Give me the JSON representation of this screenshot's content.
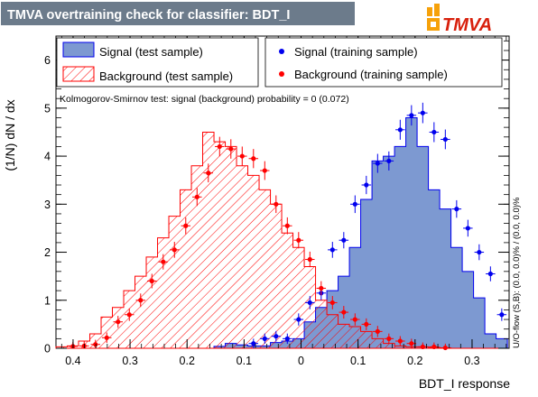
{
  "window": {
    "title": "TMVA overtraining check for classifier: BDT_I",
    "logo_text": "TMVA"
  },
  "chart_data": {
    "type": "histogram",
    "xlabel": "BDT_I response",
    "ylabel": "(1/N) dN / dx",
    "xlim": [
      -0.43,
      0.365
    ],
    "ylim": [
      0,
      6.5
    ],
    "x_ticks": [
      -0.4,
      -0.3,
      -0.2,
      -0.1,
      0,
      0.1,
      0.2,
      0.3
    ],
    "x_tick_labels": [
      "0.4",
      "0.3",
      "0.2",
      "0.1",
      "0",
      "0.1",
      "0.2",
      "0.3"
    ],
    "y_ticks": [
      0,
      1,
      2,
      3,
      4,
      5,
      6
    ],
    "y_tick_labels": [
      "0",
      "1",
      "2",
      "3",
      "4",
      "5",
      "6"
    ],
    "legend": {
      "left": [
        "Signal (test sample)",
        "Background (test sample)"
      ],
      "right": [
        "Signal (training sample)",
        "Background (training sample)"
      ]
    },
    "ks_text": "Kolmogorov-Smirnov test: signal (background) probability =    0 (0.072)",
    "overflow_text": "U/O-flow (S,B): (0.0, 0.0)% / (0.0, 0.0)%",
    "colors": {
      "signal_fill": "#7d99d1",
      "signal_line": "#0000ee",
      "background_line": "#ff0000",
      "training_signal": "#0000ee",
      "training_background": "#ff0000"
    },
    "bins": {
      "x_low": -0.43,
      "width": 0.0198,
      "count": 40
    },
    "series": [
      {
        "name": "Signal (test sample)",
        "style": "filled-histogram",
        "values": [
          0,
          0,
          0,
          0,
          0,
          0,
          0,
          0,
          0,
          0,
          0,
          0,
          0,
          0,
          0.04,
          0.1,
          0.07,
          0.05,
          0.05,
          0.12,
          0.15,
          0.2,
          0.55,
          0.85,
          1.2,
          1.5,
          2.1,
          3.1,
          3.9,
          4.0,
          4.2,
          4.8,
          4.2,
          3.3,
          2.9,
          2.1,
          1.6,
          1.05,
          0.3,
          0.2
        ]
      },
      {
        "name": "Background (test sample)",
        "style": "hatched-histogram",
        "values": [
          0.03,
          0.05,
          0.15,
          0.3,
          0.65,
          0.85,
          1.2,
          1.5,
          1.9,
          2.3,
          2.75,
          3.3,
          3.8,
          4.5,
          4.3,
          4.2,
          3.8,
          3.6,
          3.3,
          3.0,
          2.4,
          2.1,
          1.7,
          1.0,
          0.7,
          0.5,
          0.45,
          0.35,
          0.2,
          0.1,
          0.05,
          0.03,
          0.03,
          0.02,
          0.01,
          0,
          0,
          0,
          0,
          0
        ]
      },
      {
        "name": "Signal (training sample)",
        "style": "points",
        "values": [
          0,
          0,
          0,
          0,
          0,
          0,
          0,
          0,
          0,
          0,
          0,
          0,
          0,
          0,
          0,
          0,
          0,
          0.1,
          0.2,
          0.25,
          0.2,
          0.6,
          0.95,
          1.15,
          2.05,
          2.25,
          3.0,
          3.4,
          3.85,
          3.9,
          4.55,
          4.85,
          4.9,
          4.5,
          4.35,
          2.9,
          2.5,
          2.0,
          1.55,
          0.7
        ]
      },
      {
        "name": "Background (training sample)",
        "style": "points",
        "values": [
          0,
          0.04,
          0.05,
          0.08,
          0.22,
          0.55,
          0.7,
          1.0,
          1.4,
          1.8,
          2.05,
          2.55,
          3.15,
          3.65,
          4.2,
          4.15,
          4.0,
          3.95,
          3.7,
          3.0,
          2.55,
          2.25,
          1.85,
          1.25,
          0.95,
          0.75,
          0.6,
          0.5,
          0.35,
          0.2,
          0.15,
          0.1,
          0.03,
          0.03,
          0.01,
          0,
          0,
          0,
          0,
          0
        ]
      }
    ]
  }
}
